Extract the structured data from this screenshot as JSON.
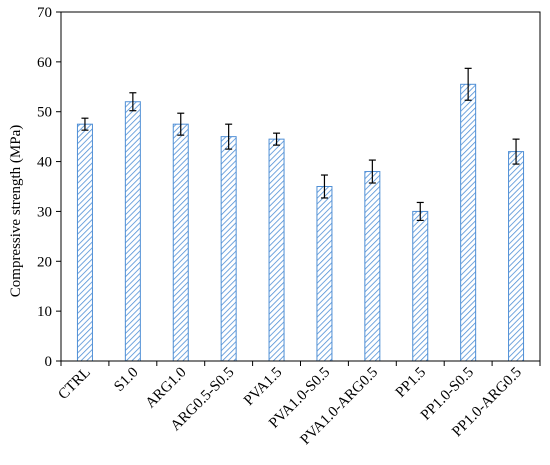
{
  "chart_data": {
    "type": "bar",
    "ylabel": "Compressive strength (MPa)",
    "xlabel": "",
    "ylim": [
      0,
      70
    ],
    "yticks": [
      0,
      10,
      20,
      30,
      40,
      50,
      60,
      70
    ],
    "grid": false,
    "categories": [
      "CTRL",
      "S1.0",
      "ARG1.0",
      "ARG0.5-S0.5",
      "PVA1.5",
      "PVA1.0-S0.5",
      "PVA1.0-ARG0.5",
      "PP1.5",
      "PP1.0-S0.5",
      "PP1.0-ARG0.5"
    ],
    "values": [
      47.5,
      52,
      47.5,
      45,
      44.5,
      35,
      38,
      30,
      55.5,
      42
    ],
    "errors": [
      1.2,
      1.8,
      2.2,
      2.5,
      1.2,
      2.3,
      2.3,
      1.8,
      3.2,
      2.5
    ],
    "bar_color": "#4f8fd6",
    "bar_pattern": "diagonal-hatch"
  }
}
